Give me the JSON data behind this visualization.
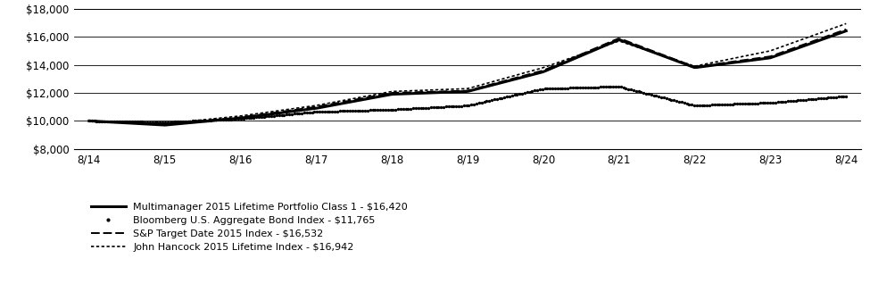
{
  "x_labels": [
    "8/14",
    "8/15",
    "8/16",
    "8/17",
    "8/18",
    "8/19",
    "8/20",
    "8/21",
    "8/22",
    "8/23",
    "8/24"
  ],
  "x_values": [
    0,
    1,
    2,
    3,
    4,
    5,
    6,
    7,
    8,
    9,
    10
  ],
  "multimanager": [
    10000,
    9700,
    10200,
    10900,
    11900,
    12100,
    13500,
    15800,
    13800,
    14500,
    16420
  ],
  "bloomberg": [
    10000,
    9900,
    10150,
    10650,
    10800,
    11100,
    12300,
    12450,
    11100,
    11300,
    11765
  ],
  "sp_target": [
    10000,
    9750,
    10250,
    11000,
    12000,
    12150,
    13600,
    15900,
    13850,
    14600,
    16532
  ],
  "john_hancock": [
    10000,
    9800,
    10350,
    11100,
    12100,
    12300,
    13800,
    15700,
    13900,
    15000,
    16942
  ],
  "ylim": [
    8000,
    18000
  ],
  "yticks": [
    8000,
    10000,
    12000,
    14000,
    16000,
    18000
  ],
  "legend_labels": [
    "Multimanager 2015 Lifetime Portfolio Class 1 - $16,420",
    "Bloomberg U.S. Aggregate Bond Index - $11,765",
    "S&P Target Date 2015 Index - $16,532",
    "John Hancock 2015 Lifetime Index - $16,942"
  ],
  "line_color": "#000000",
  "background_color": "#ffffff",
  "grid_color": "#000000",
  "fig_width": 9.75,
  "fig_height": 3.27,
  "dpi": 100
}
